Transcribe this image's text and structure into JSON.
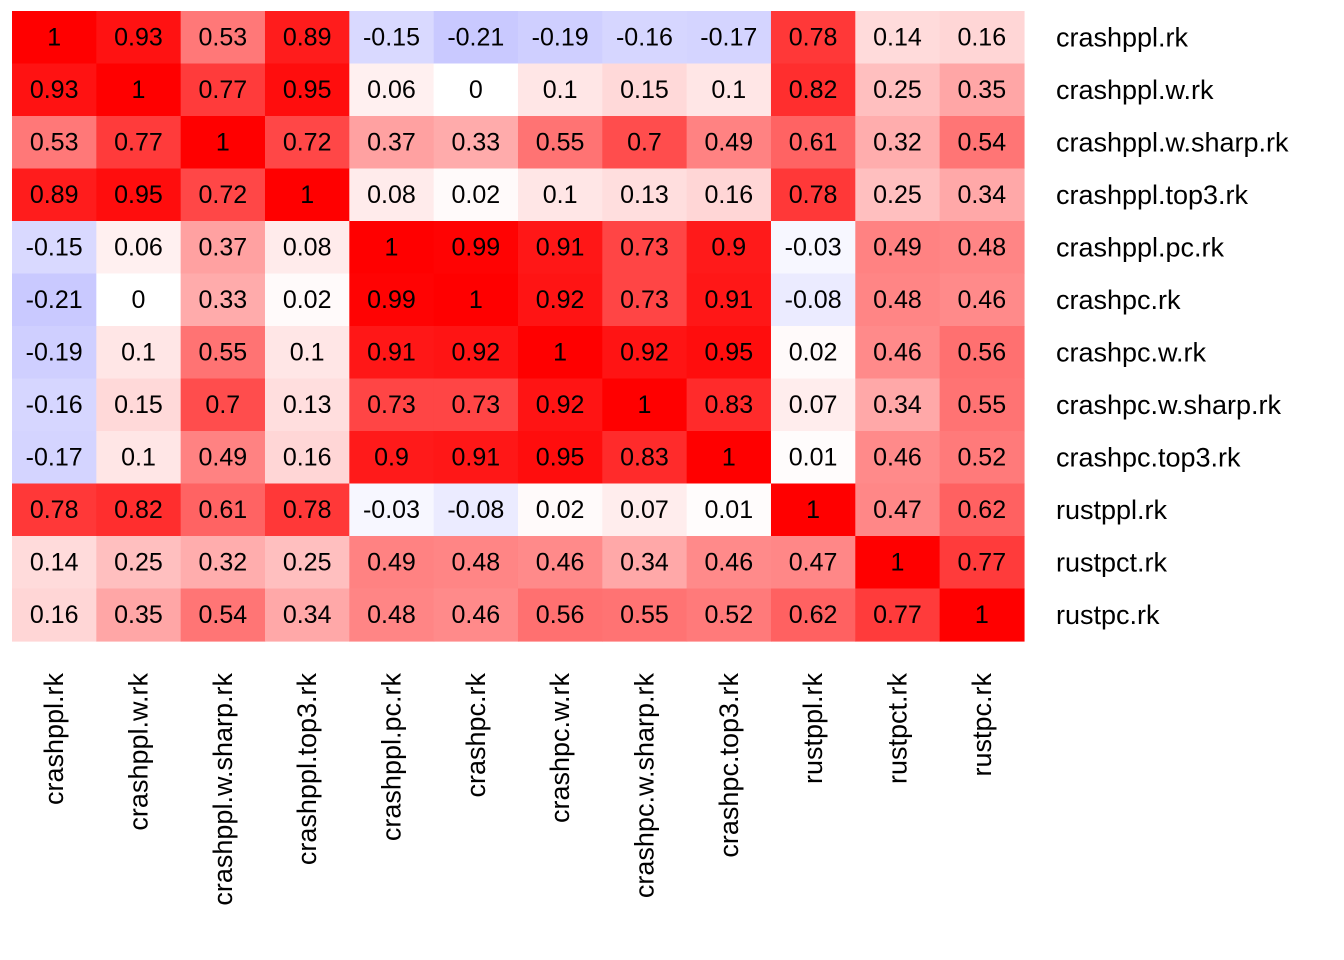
{
  "chart_data": {
    "type": "heatmap",
    "title": "",
    "row_labels": [
      "crashppl.rk",
      "crashppl.w.rk",
      "crashppl.w.sharp.rk",
      "crashppl.top3.rk",
      "crashppl.pc.rk",
      "crashpc.rk",
      "crashpc.w.rk",
      "crashpc.w.sharp.rk",
      "crashpc.top3.rk",
      "rustppl.rk",
      "rustpct.rk",
      "rustpc.rk"
    ],
    "col_labels": [
      "crashppl.rk",
      "crashppl.w.rk",
      "crashppl.w.sharp.rk",
      "crashppl.top3.rk",
      "crashppl.pc.rk",
      "crashpc.rk",
      "crashpc.w.rk",
      "crashpc.w.sharp.rk",
      "crashpc.top3.rk",
      "rustppl.rk",
      "rustpct.rk",
      "rustpc.rk"
    ],
    "values": [
      [
        1,
        0.93,
        0.53,
        0.89,
        -0.15,
        -0.21,
        -0.19,
        -0.16,
        -0.17,
        0.78,
        0.14,
        0.16
      ],
      [
        0.93,
        1,
        0.77,
        0.95,
        0.06,
        0,
        0.1,
        0.15,
        0.1,
        0.82,
        0.25,
        0.35
      ],
      [
        0.53,
        0.77,
        1,
        0.72,
        0.37,
        0.33,
        0.55,
        0.7,
        0.49,
        0.61,
        0.32,
        0.54
      ],
      [
        0.89,
        0.95,
        0.72,
        1,
        0.08,
        0.02,
        0.1,
        0.13,
        0.16,
        0.78,
        0.25,
        0.34
      ],
      [
        -0.15,
        0.06,
        0.37,
        0.08,
        1,
        0.99,
        0.91,
        0.73,
        0.9,
        -0.03,
        0.49,
        0.48
      ],
      [
        -0.21,
        0,
        0.33,
        0.02,
        0.99,
        1,
        0.92,
        0.73,
        0.91,
        -0.08,
        0.48,
        0.46
      ],
      [
        -0.19,
        0.1,
        0.55,
        0.1,
        0.91,
        0.92,
        1,
        0.92,
        0.95,
        0.02,
        0.46,
        0.56
      ],
      [
        -0.16,
        0.15,
        0.7,
        0.13,
        0.73,
        0.73,
        0.92,
        1,
        0.83,
        0.07,
        0.34,
        0.55
      ],
      [
        -0.17,
        0.1,
        0.49,
        0.16,
        0.9,
        0.91,
        0.95,
        0.83,
        1,
        0.01,
        0.46,
        0.52
      ],
      [
        0.78,
        0.82,
        0.61,
        0.78,
        -0.03,
        -0.08,
        0.02,
        0.07,
        0.01,
        1,
        0.47,
        0.62
      ],
      [
        0.14,
        0.25,
        0.32,
        0.25,
        0.49,
        0.48,
        0.46,
        0.34,
        0.46,
        0.47,
        1,
        0.77
      ],
      [
        0.16,
        0.35,
        0.54,
        0.34,
        0.48,
        0.46,
        0.56,
        0.55,
        0.52,
        0.62,
        0.77,
        1
      ]
    ],
    "color_scale": {
      "negative": "#0000ff",
      "zero": "#ffffff",
      "positive": "#ff0000",
      "range": [
        -1,
        1
      ]
    },
    "legend": "none",
    "grid": false
  }
}
